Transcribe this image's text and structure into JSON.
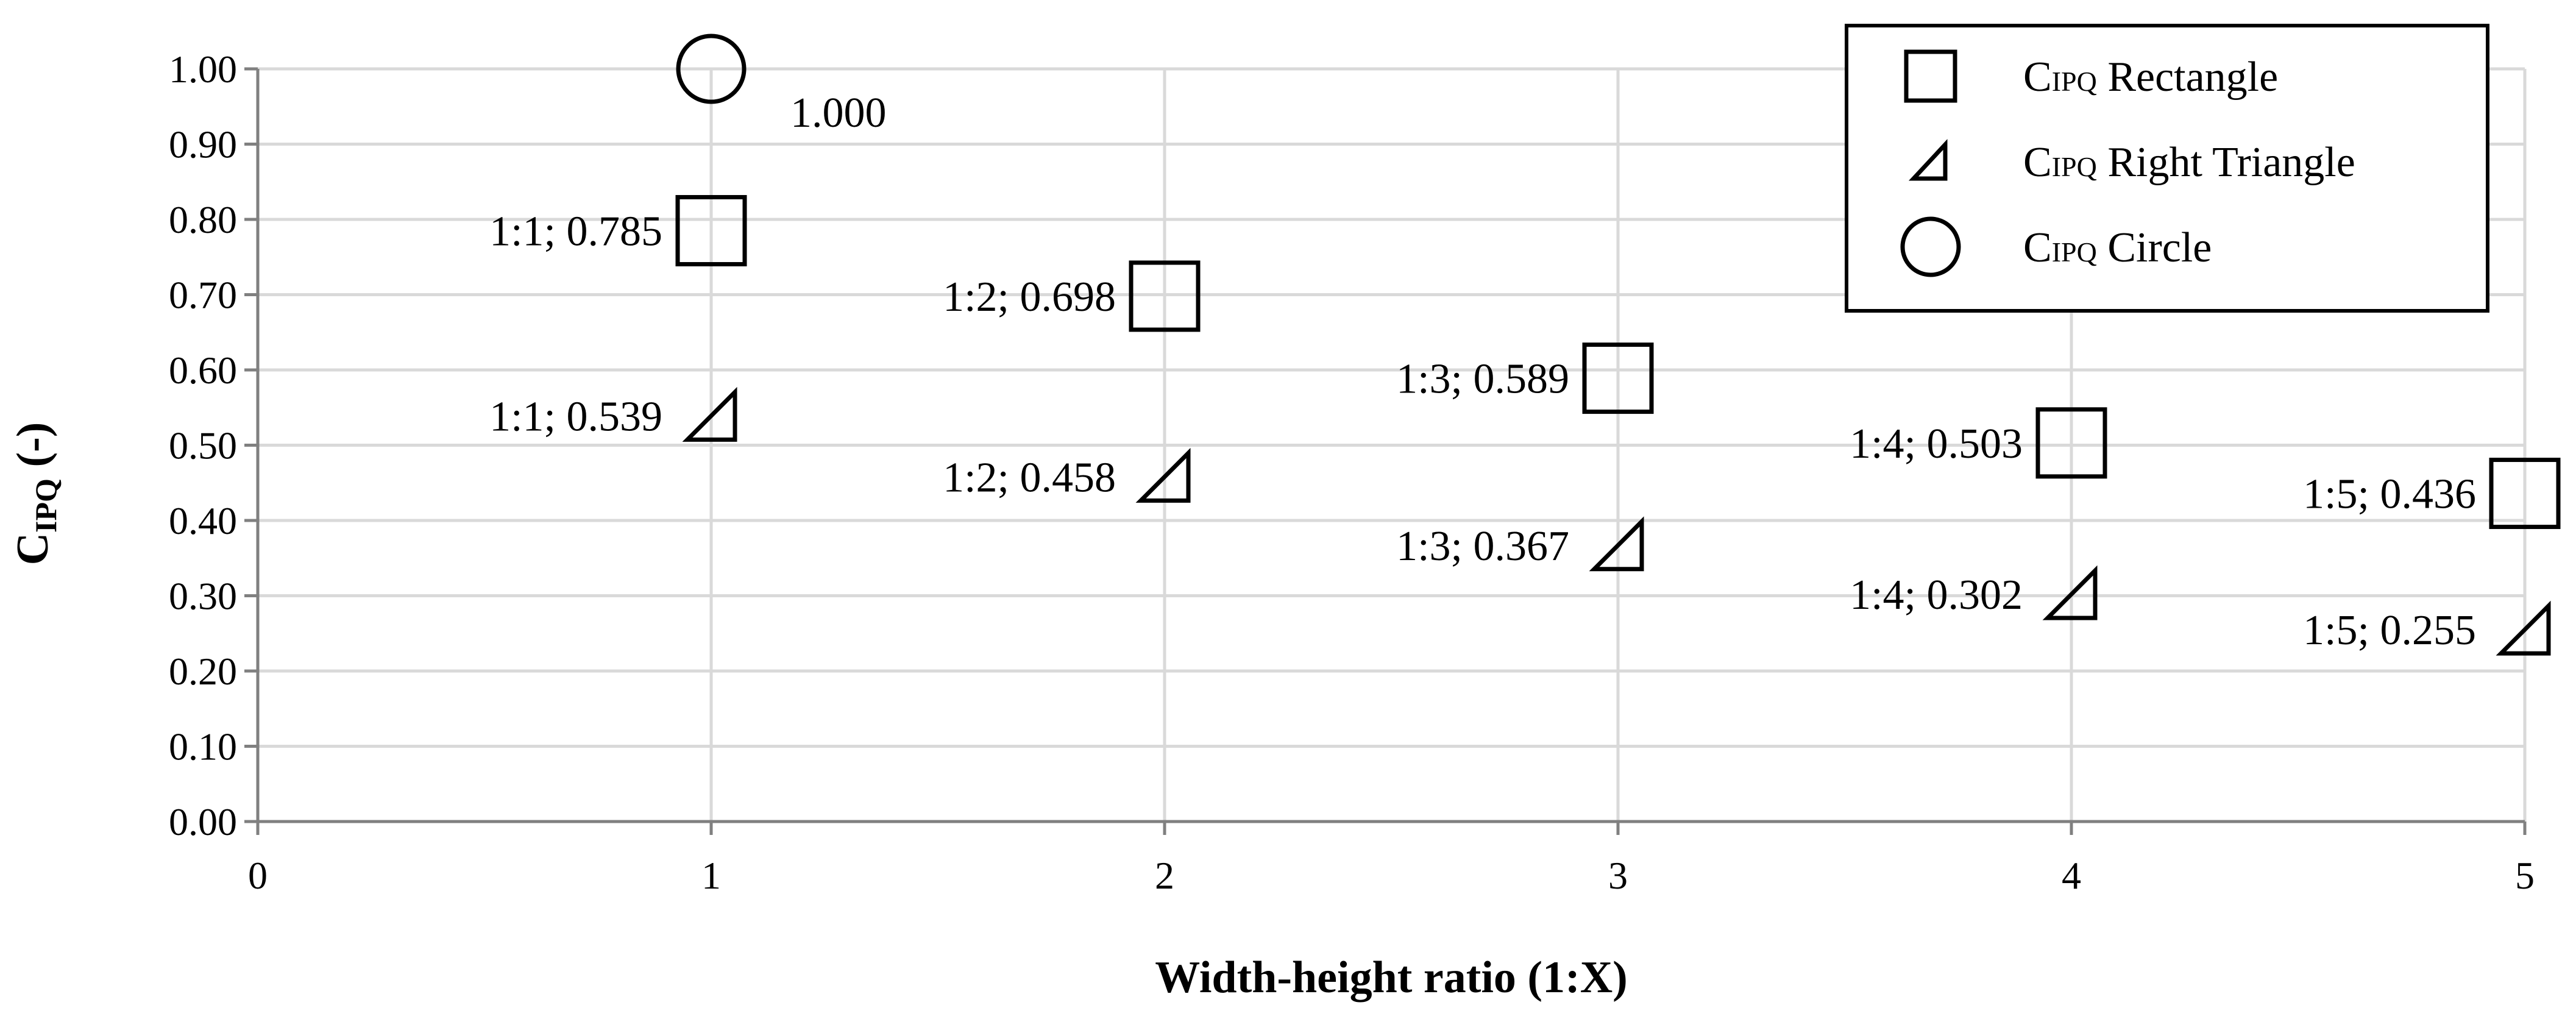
{
  "chart_data": {
    "type": "scatter",
    "xlabel": "Width-height ratio (1:X)",
    "ylabel": {
      "main": "C",
      "sub": "IPQ",
      "suffix": " (-)"
    },
    "xlim": [
      0,
      5
    ],
    "ylim": [
      0,
      1.0
    ],
    "x_ticks": [
      "0",
      "1",
      "2",
      "3",
      "4",
      "5"
    ],
    "y_ticks": [
      "0.00",
      "0.10",
      "0.20",
      "0.30",
      "0.40",
      "0.50",
      "0.60",
      "0.70",
      "0.80",
      "0.90",
      "1.00"
    ],
    "grid": true,
    "legend_position": "top-right",
    "series": [
      {
        "name": {
          "main": "C",
          "sub": "IPQ",
          "suffix": " Rectangle"
        },
        "marker": "square",
        "points": [
          {
            "x": 1,
            "y": 0.785,
            "label": "1:1; 0.785"
          },
          {
            "x": 2,
            "y": 0.698,
            "label": "1:2; 0.698"
          },
          {
            "x": 3,
            "y": 0.589,
            "label": "1:3; 0.589"
          },
          {
            "x": 4,
            "y": 0.503,
            "label": "1:4; 0.503"
          },
          {
            "x": 5,
            "y": 0.436,
            "label": "1:5; 0.436"
          }
        ]
      },
      {
        "name": {
          "main": "C",
          "sub": "IPQ",
          "suffix": " Right Triangle"
        },
        "marker": "right-triangle",
        "points": [
          {
            "x": 1,
            "y": 0.539,
            "label": "1:1; 0.539"
          },
          {
            "x": 2,
            "y": 0.458,
            "label": "1:2; 0.458"
          },
          {
            "x": 3,
            "y": 0.367,
            "label": "1:3; 0.367"
          },
          {
            "x": 4,
            "y": 0.302,
            "label": "1:4; 0.302"
          },
          {
            "x": 5,
            "y": 0.255,
            "label": "1:5; 0.255"
          }
        ]
      },
      {
        "name": {
          "main": "C",
          "sub": "IPQ",
          "suffix": " Circle"
        },
        "marker": "circle",
        "points": [
          {
            "x": 1,
            "y": 1.0,
            "label": "1.000"
          }
        ]
      }
    ]
  }
}
